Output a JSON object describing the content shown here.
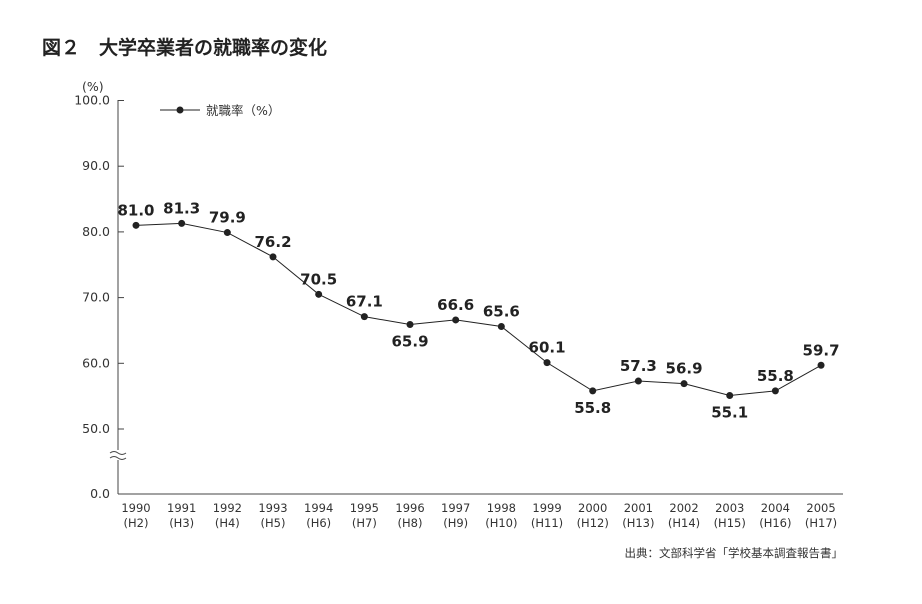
{
  "chart_data": {
    "type": "line",
    "title": "図２　大学卒業者の就職率の変化",
    "ylabel": "(%)",
    "ylim": [
      0,
      100
    ],
    "axis_break": [
      0,
      50
    ],
    "yticks": [
      "0.0",
      "50.0",
      "60.0",
      "70.0",
      "80.0",
      "90.0",
      "100.0"
    ],
    "categories": [
      "1990",
      "1991",
      "1992",
      "1993",
      "1994",
      "1995",
      "1996",
      "1997",
      "1998",
      "1999",
      "2000",
      "2001",
      "2002",
      "2003",
      "2004",
      "2005"
    ],
    "era_labels": [
      "(H2)",
      "(H3)",
      "(H4)",
      "(H5)",
      "(H6)",
      "(H7)",
      "(H8)",
      "(H9)",
      "(H10)",
      "(H11)",
      "(H12)",
      "(H13)",
      "(H14)",
      "(H15)",
      "(H16)",
      "(H17)"
    ],
    "series": [
      {
        "name": "就職率（%）",
        "color": "#222222",
        "values": [
          81.0,
          81.3,
          79.9,
          76.2,
          70.5,
          67.1,
          65.9,
          66.6,
          65.6,
          60.1,
          55.8,
          57.3,
          56.9,
          55.1,
          55.8,
          59.7
        ]
      }
    ],
    "data_labels": [
      "81.0",
      "81.3",
      "79.9",
      "76.2",
      "70.5",
      "67.1",
      "65.9",
      "66.6",
      "65.6",
      "60.1",
      "55.8",
      "57.3",
      "56.9",
      "55.1",
      "55.8",
      "59.7"
    ],
    "legend_placement": "top-left",
    "grid": false,
    "source": "出典：文部科学省「学校基本調査報告書」"
  }
}
